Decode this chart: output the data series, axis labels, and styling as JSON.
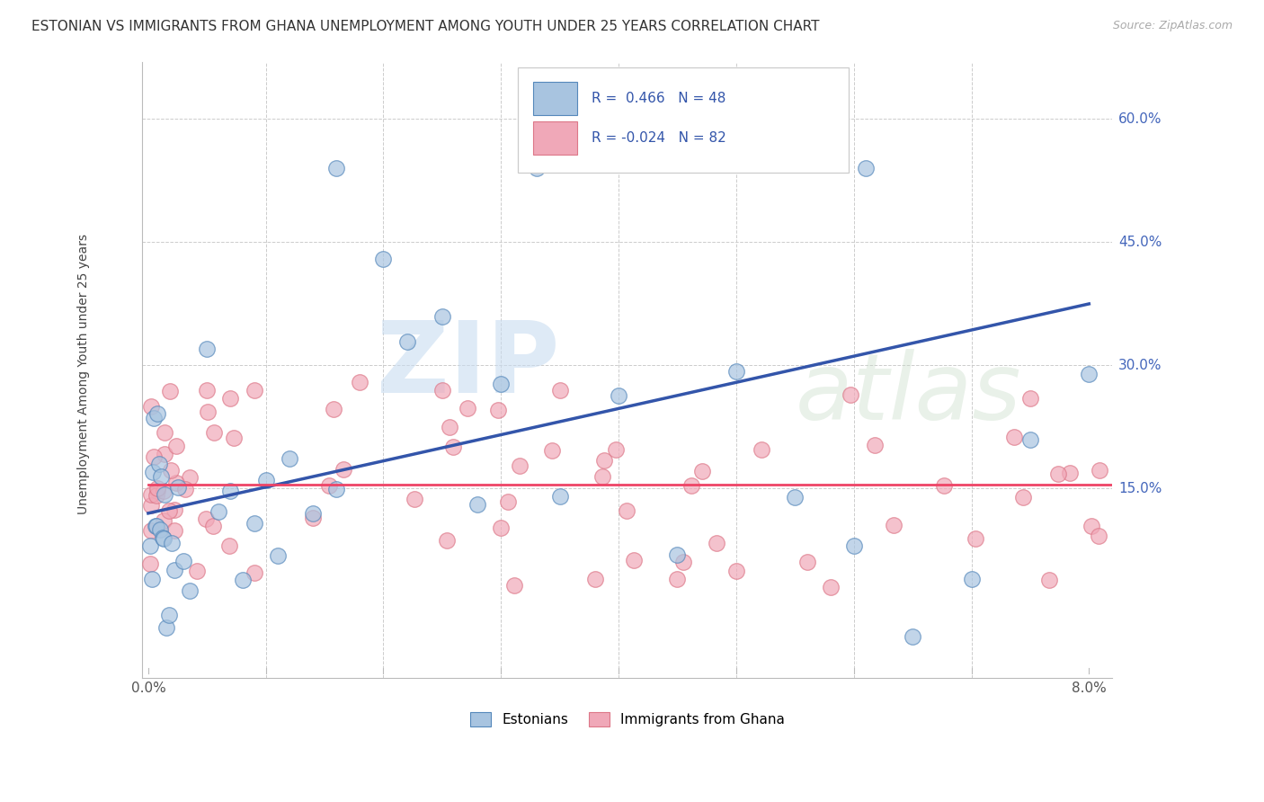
{
  "title": "ESTONIAN VS IMMIGRANTS FROM GHANA UNEMPLOYMENT AMONG YOUTH UNDER 25 YEARS CORRELATION CHART",
  "source": "Source: ZipAtlas.com",
  "ylabel": "Unemployment Among Youth under 25 years",
  "xlim": [
    -0.05,
    8.2
  ],
  "ylim": [
    -0.08,
    0.67
  ],
  "blue_r": "0.466",
  "blue_n": "48",
  "pink_r": "-0.024",
  "pink_n": "82",
  "blue_face": "#A8C4E0",
  "blue_edge": "#5588BB",
  "pink_face": "#F0A8B8",
  "pink_edge": "#DD7788",
  "blue_line": "#3355AA",
  "pink_line": "#EE4466",
  "grid_color": "#CCCCCC",
  "bg_color": "#FFFFFF",
  "right_tick_color": "#4466BB",
  "title_color": "#333333",
  "source_color": "#AAAAAA",
  "ytick_vals": [
    0.15,
    0.3,
    0.45,
    0.6
  ],
  "ytick_labels": [
    "15.0%",
    "30.0%",
    "45.0%",
    "60.0%"
  ],
  "blue_trend_x0": 0.0,
  "blue_trend_y0": 0.12,
  "blue_trend_x1": 8.0,
  "blue_trend_y1": 0.375,
  "pink_trend_y": 0.155,
  "watermark_zip_color": "#C8DCF0",
  "watermark_atlas_color": "#C8DCC8"
}
